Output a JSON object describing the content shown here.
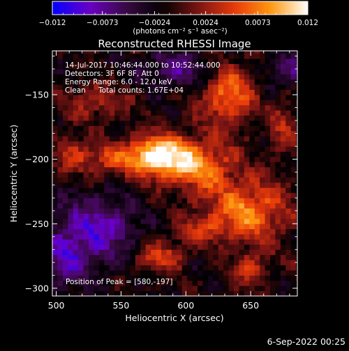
{
  "chart_data": {
    "type": "heatmap",
    "title": "Reconstructed RHESSI Image",
    "xlabel": "Heliocentric X (arcsec)",
    "ylabel": "Heliocentric Y (arcsec)",
    "xlim": [
      497,
      686
    ],
    "ylim": [
      -306,
      -116
    ],
    "x_ticks": [
      500,
      550,
      600,
      650
    ],
    "y_ticks": [
      -150,
      -200,
      -250,
      -300
    ],
    "colorbar": {
      "min": -0.012,
      "max": 0.012,
      "tick_values": [
        -0.012,
        -0.0073,
        -0.0024,
        0.0024,
        0.0073,
        0.012
      ],
      "tick_labels": [
        "-0.012",
        "-0.0073",
        "-0.0024",
        "0.0024",
        "0.0073",
        "0.012"
      ],
      "unit_label": "(photons cm⁻² s⁻¹ asec⁻²)",
      "colors": [
        "#0000ff",
        "#6a00c8",
        "#3a0a44",
        "#000000",
        "#7a1414",
        "#e83a0a",
        "#ff9a10",
        "#ffffff"
      ]
    },
    "annotations": {
      "time_range": "14-Jul-2017 10:46:44.000 to 10:52:44.000",
      "detectors": "Detectors: 3F 6F 8F, Att 0",
      "energy_range": "Energy Range: 6.0 - 12.0 keV",
      "clean_label": "Clean",
      "total_counts": "Total counts: 1.67E+04",
      "peak_position": "Position of Peak = [580,-197]"
    },
    "peak": [
      580,
      -197
    ],
    "emission_regions": [
      {
        "x": 578,
        "y": -197,
        "sigma_x": 16,
        "sigma_y": 11,
        "amplitude": 0.013
      },
      {
        "x": 610,
        "y": -205,
        "sigma_x": 20,
        "sigma_y": 14,
        "amplitude": 0.0085
      },
      {
        "x": 632,
        "y": -150,
        "sigma_x": 14,
        "sigma_y": 17,
        "amplitude": 0.0085
      },
      {
        "x": 648,
        "y": -240,
        "sigma_x": 22,
        "sigma_y": 16,
        "amplitude": 0.009
      },
      {
        "x": 540,
        "y": -200,
        "sigma_x": 16,
        "sigma_y": 9,
        "amplitude": 0.0055
      },
      {
        "x": 512,
        "y": -195,
        "sigma_x": 10,
        "sigma_y": 10,
        "amplitude": 0.0045
      },
      {
        "x": 580,
        "y": -275,
        "sigma_x": 14,
        "sigma_y": 8,
        "amplitude": 0.006
      },
      {
        "x": 530,
        "y": -155,
        "sigma_x": 18,
        "sigma_y": 10,
        "amplitude": 0.0045
      },
      {
        "x": 650,
        "y": -285,
        "sigma_x": 10,
        "sigma_y": 10,
        "amplitude": 0.005
      },
      {
        "x": 610,
        "y": -255,
        "sigma_x": 14,
        "sigma_y": 8,
        "amplitude": 0.004
      },
      {
        "x": 675,
        "y": -175,
        "sigma_x": 8,
        "sigma_y": 14,
        "amplitude": 0.0045
      },
      {
        "x": 530,
        "y": -255,
        "sigma_x": 22,
        "sigma_y": 18,
        "amplitude": -0.007
      },
      {
        "x": 505,
        "y": -280,
        "sigma_x": 14,
        "sigma_y": 14,
        "amplitude": -0.005
      },
      {
        "x": 595,
        "y": -130,
        "sigma_x": 20,
        "sigma_y": 10,
        "amplitude": -0.005
      },
      {
        "x": 680,
        "y": -130,
        "sigma_x": 10,
        "sigma_y": 10,
        "amplitude": -0.005
      }
    ]
  },
  "footer": {
    "date": "6-Sep-2022 00:25"
  }
}
